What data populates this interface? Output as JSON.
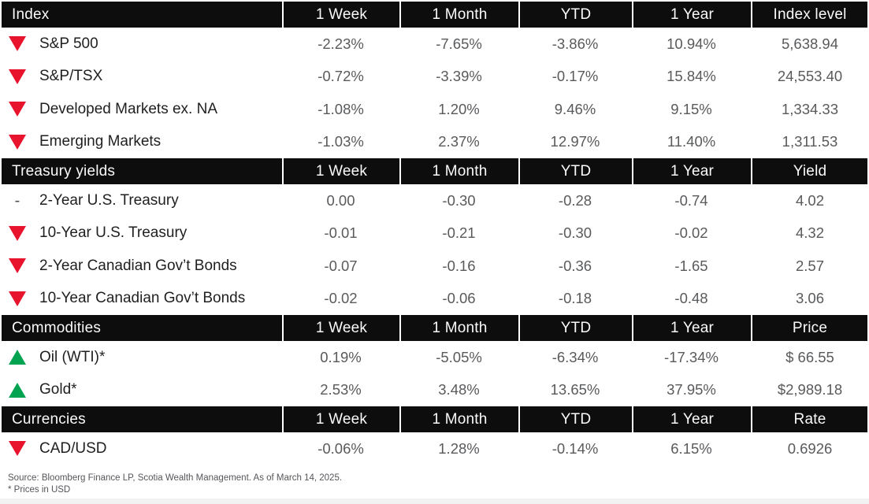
{
  "colors": {
    "up_green": "#00a34f",
    "down_red": "#e8132c",
    "header_bg": "#0d0d0d",
    "header_text": "#fafafa",
    "value_text": "#595a5c",
    "label_text": "#1f1f1f"
  },
  "icons": {
    "down": "down-triangle",
    "up": "up-triangle",
    "flat_dash": "-"
  },
  "columns_common": [
    "1 Week",
    "1 Month",
    "YTD",
    "1 Year"
  ],
  "table": {
    "sections": [
      {
        "title": "Index",
        "last_col": "Index level",
        "rows": [
          {
            "dir": "down",
            "label": "S&P 500",
            "values": [
              "-2.23%",
              "-7.65%",
              "-3.86%",
              "10.94%",
              "5,638.94"
            ]
          },
          {
            "dir": "down",
            "label": "S&P/TSX",
            "values": [
              "-0.72%",
              "-3.39%",
              "-0.17%",
              "15.84%",
              "24,553.40"
            ]
          },
          {
            "dir": "down",
            "label": "Developed Markets ex. NA",
            "values": [
              "-1.08%",
              "1.20%",
              "9.46%",
              "9.15%",
              "1,334.33"
            ]
          },
          {
            "dir": "down",
            "label": "Emerging Markets",
            "values": [
              "-1.03%",
              "2.37%",
              "12.97%",
              "11.40%",
              "1,311.53"
            ]
          }
        ]
      },
      {
        "title": "Treasury yields",
        "last_col": "Yield",
        "rows": [
          {
            "dir": "flat",
            "label": "2-Year U.S. Treasury",
            "values": [
              "0.00",
              "-0.30",
              "-0.28",
              "-0.74",
              "4.02"
            ]
          },
          {
            "dir": "down",
            "label": "10-Year U.S. Treasury",
            "values": [
              "-0.01",
              "-0.21",
              "-0.30",
              "-0.02",
              "4.32"
            ]
          },
          {
            "dir": "down",
            "label": "2-Year Canadian Gov’t Bonds",
            "values": [
              "-0.07",
              "-0.16",
              "-0.36",
              "-1.65",
              "2.57"
            ]
          },
          {
            "dir": "down",
            "label": "10-Year Canadian Gov’t Bonds",
            "values": [
              "-0.02",
              "-0.06",
              "-0.18",
              "-0.48",
              "3.06"
            ]
          }
        ]
      },
      {
        "title": "Commodities",
        "last_col": "Price",
        "rows": [
          {
            "dir": "up",
            "label": "Oil (WTI)*",
            "values": [
              "0.19%",
              "-5.05%",
              "-6.34%",
              "-17.34%",
              "$ 66.55"
            ]
          },
          {
            "dir": "up",
            "label": "Gold*",
            "values": [
              "2.53%",
              "3.48%",
              "13.65%",
              "37.95%",
              "$2,989.18"
            ]
          }
        ]
      },
      {
        "title": "Currencies",
        "last_col": "Rate",
        "rows": [
          {
            "dir": "down",
            "label": "CAD/USD",
            "values": [
              "-0.06%",
              "1.28%",
              "-0.14%",
              "6.15%",
              "0.6926"
            ]
          }
        ]
      }
    ]
  },
  "footer": {
    "line1": "Source: Bloomberg Finance LP, Scotia Wealth Management. As of March 14, 2025.",
    "line2": "* Prices in USD"
  }
}
